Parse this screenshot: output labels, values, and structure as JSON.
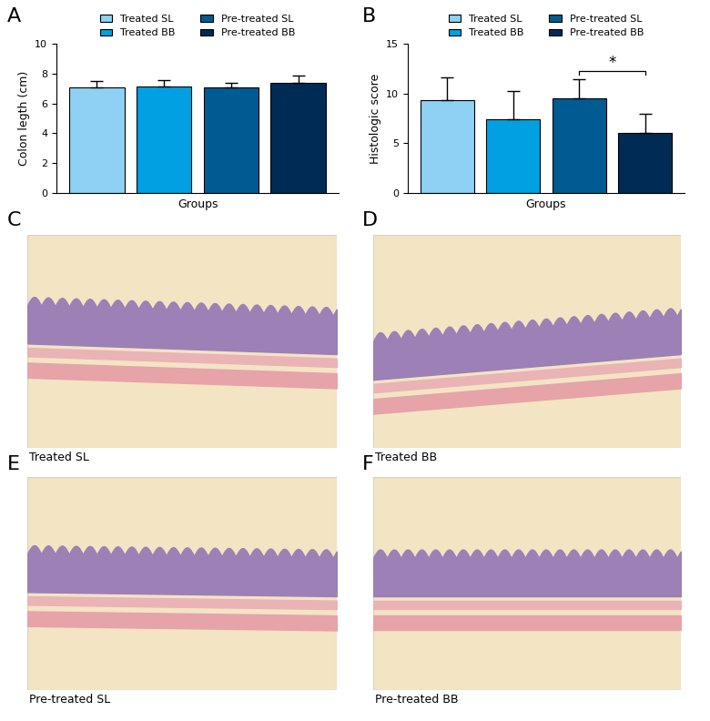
{
  "chart_data": [
    {
      "panel": "A",
      "type": "bar",
      "xlabel": "Groups",
      "ylabel": "Colon legth (cm)",
      "ylim": [
        0,
        10
      ],
      "yticks": [
        0,
        2,
        4,
        6,
        8,
        10
      ],
      "tick_labels": "y",
      "legend": "upper center",
      "series": [
        {
          "name": "Treated SL",
          "color": "#8ed1f5",
          "values": [
            7.05
          ],
          "errors": [
            0.45
          ]
        },
        {
          "name": "Treated BB",
          "color": "#00a0e3",
          "values": [
            7.15
          ],
          "errors": [
            0.4
          ]
        },
        {
          "name": "Pre-treated SL",
          "color": "#005b92",
          "values": [
            7.05
          ],
          "errors": [
            0.3
          ]
        },
        {
          "name": "Pre-treated BB",
          "color": "#002b55",
          "values": [
            7.4
          ],
          "errors": [
            0.45
          ]
        }
      ]
    },
    {
      "panel": "B",
      "type": "bar",
      "xlabel": "Groups",
      "ylabel": "Histologic score",
      "ylim": [
        0,
        15
      ],
      "yticks": [
        0,
        5,
        10,
        15
      ],
      "tick_labels": "y",
      "legend": "upper center",
      "series": [
        {
          "name": "Treated SL",
          "color": "#8ed1f5",
          "values": [
            9.3
          ],
          "errors": [
            2.3
          ]
        },
        {
          "name": "Treated BB",
          "color": "#00a0e3",
          "values": [
            7.4
          ],
          "errors": [
            2.8
          ]
        },
        {
          "name": "Pre-treated SL",
          "color": "#005b92",
          "values": [
            9.5
          ],
          "errors": [
            1.9
          ]
        },
        {
          "name": "Pre-treated BB",
          "color": "#002b55",
          "values": [
            6.0
          ],
          "errors": [
            2.0
          ]
        }
      ],
      "annotations": [
        {
          "text": "*",
          "series": [
            "Pre-treated SL",
            "Pre-treated BB"
          ]
        }
      ]
    }
  ],
  "images": [
    {
      "panel": "C",
      "caption": "Treated SL"
    },
    {
      "panel": "D",
      "caption": "Treated BB"
    },
    {
      "panel": "E",
      "caption": "Pre-treated SL"
    },
    {
      "panel": "F",
      "caption": "Pre-treated BB"
    }
  ]
}
